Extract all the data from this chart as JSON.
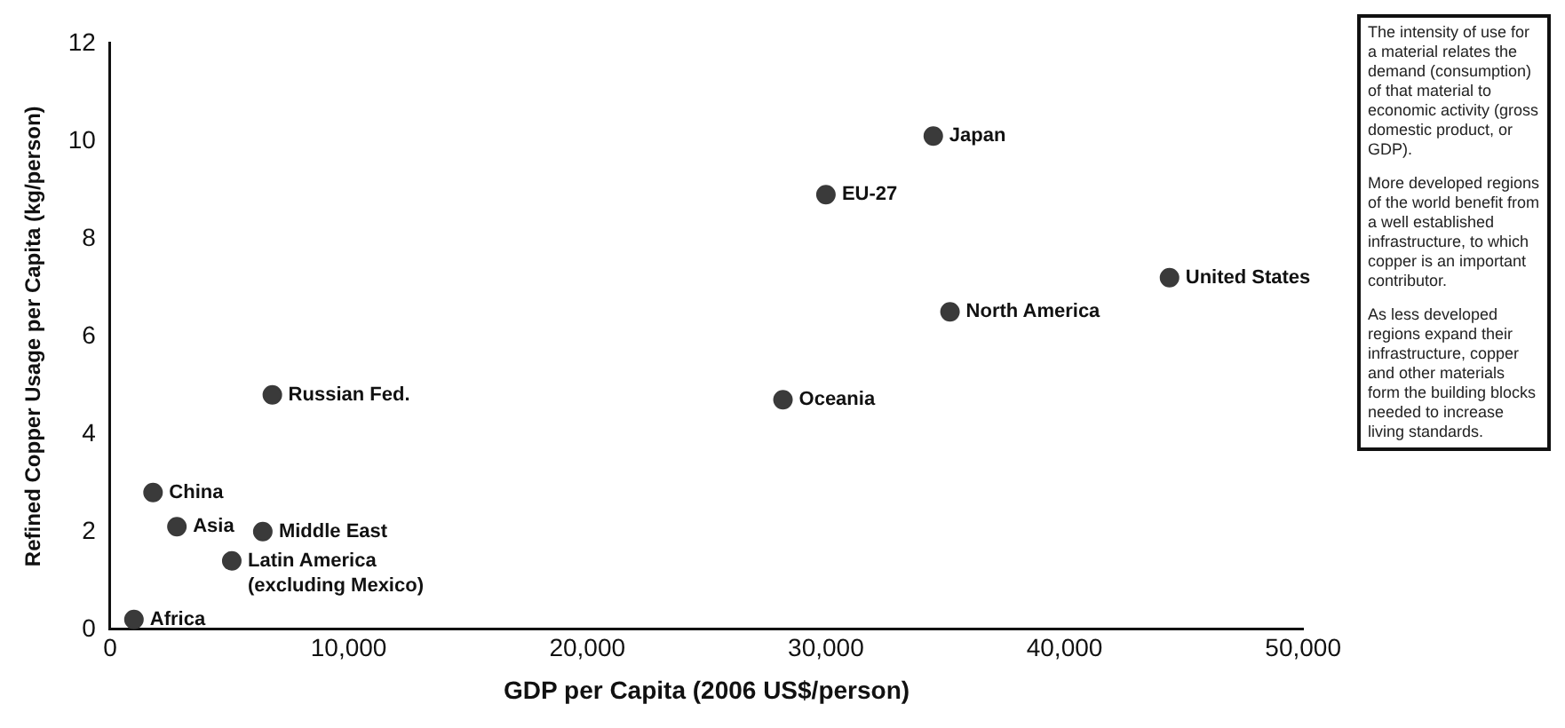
{
  "chart_data": {
    "type": "scatter",
    "xlabel": "GDP per Capita (2006 US$/person)",
    "ylabel": "Refined Copper Usage per Capita (kg/person)",
    "x": [
      1000,
      1800,
      2800,
      5100,
      6400,
      6800,
      28200,
      30000,
      34500,
      35200,
      44400
    ],
    "values": [
      0.2,
      2.8,
      2.1,
      1.4,
      2.0,
      4.8,
      4.7,
      8.9,
      10.1,
      6.5,
      7.2
    ],
    "color": "#3a3a3a",
    "marker": "circle",
    "grid": false,
    "legend": false,
    "xlim": [
      0,
      50000
    ],
    "xticks": [
      0,
      {
        "value": 10000,
        "label": "10,000"
      },
      {
        "value": 20000,
        "label": "20,000"
      },
      {
        "value": 30000,
        "label": "30,000"
      },
      {
        "value": 40000,
        "label": "40,000"
      },
      {
        "value": 50000,
        "label": "50,000"
      }
    ],
    "ylim": [
      0,
      12
    ],
    "yticks": [
      0,
      2,
      4,
      6,
      8,
      10,
      12
    ],
    "annotations": [
      {
        "text": "Africa",
        "x": 1000,
        "y": 0.2
      },
      {
        "text": "China",
        "x": 1800,
        "y": 2.8
      },
      {
        "text": "Asia",
        "x": 2800,
        "y": 2.1
      },
      {
        "text": "Latin America\n(excluding Mexico)",
        "x": 5100,
        "y": 1.4
      },
      {
        "text": "Middle East",
        "x": 6400,
        "y": 2.0
      },
      {
        "text": "Russian Fed.",
        "x": 6800,
        "y": 4.8
      },
      {
        "text": "Oceania",
        "x": 28200,
        "y": 4.7
      },
      {
        "text": "EU-27",
        "x": 30000,
        "y": 8.9
      },
      {
        "text": "Japan",
        "x": 34500,
        "y": 10.1
      },
      {
        "text": "North America",
        "x": 35200,
        "y": 6.5
      },
      {
        "text": "United States",
        "x": 44400,
        "y": 7.2
      },
      "The intensity of use for a material relates the demand (consumption) of that material to economic activity (gross domestic product, or GDP).",
      "More developed regions of the world benefit from a well established infrastructure, to which copper is an important contributor.",
      "As less developed regions expand their infrastructure, copper and other materials form the building blocks needed to increase living standards."
    ]
  }
}
